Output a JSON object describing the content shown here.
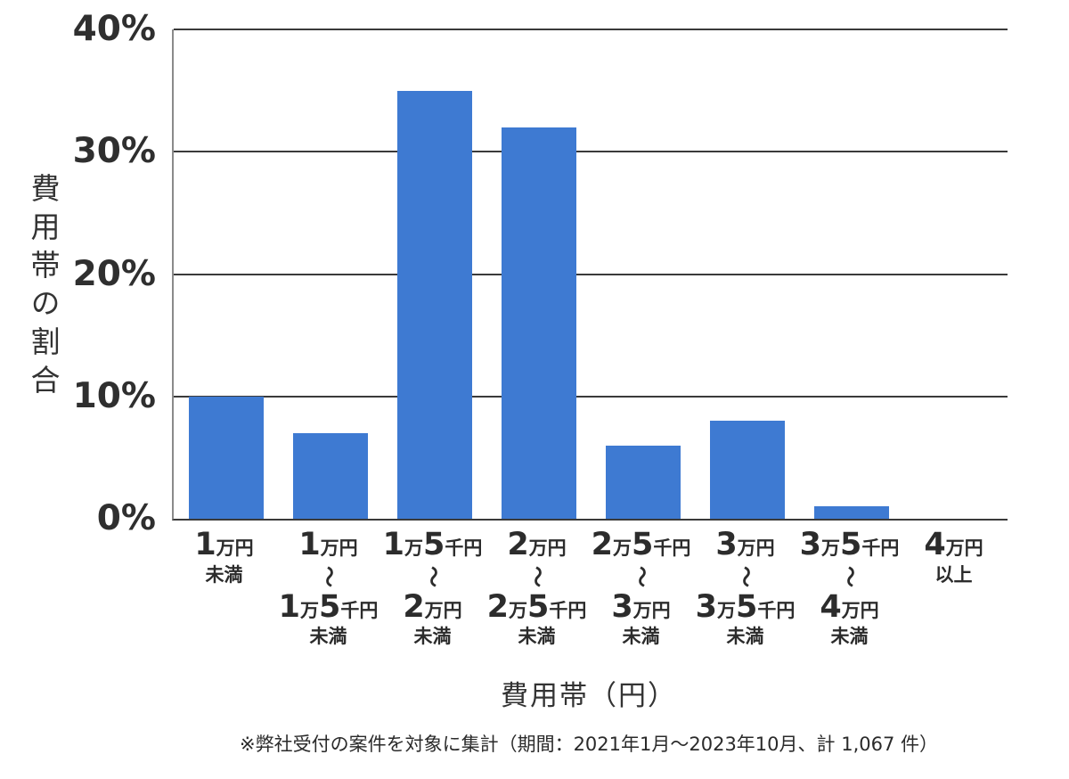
{
  "chart_data": {
    "type": "bar",
    "title": "",
    "categories": [
      {
        "lines": [
          "1万円",
          "未満"
        ]
      },
      {
        "lines": [
          "1万円",
          "〜",
          "1万5千円",
          "未満"
        ]
      },
      {
        "lines": [
          "1万5千円",
          "〜",
          "2万円",
          "未満"
        ]
      },
      {
        "lines": [
          "2万円",
          "〜",
          "2万5千円",
          "未満"
        ]
      },
      {
        "lines": [
          "2万5千円",
          "〜",
          "3万円",
          "未満"
        ]
      },
      {
        "lines": [
          "3万円",
          "〜",
          "3万5千円",
          "未満"
        ]
      },
      {
        "lines": [
          "3万5千円",
          "〜",
          "4万円",
          "未満"
        ]
      },
      {
        "lines": [
          "4万円",
          "以上"
        ]
      }
    ],
    "values": [
      10,
      7,
      35,
      32,
      6,
      8,
      1,
      0
    ],
    "xlabel": "費用帯（円）",
    "ylabel": "費用帯の割合",
    "y_ticks": [
      0,
      10,
      20,
      30,
      40
    ],
    "y_tick_suffix": "%",
    "ylim": [
      0,
      40
    ],
    "grid": true,
    "legend_position": "none",
    "bar_color": "#3e7ad2",
    "text_color": "#2f2f2f",
    "grid_color": "#3a3a3a",
    "axis_color": "#8a8a8a",
    "note": "※弊社受付の案件を対象に集計（期間：2021年1月～2023年10月、計 1,067 件）"
  }
}
